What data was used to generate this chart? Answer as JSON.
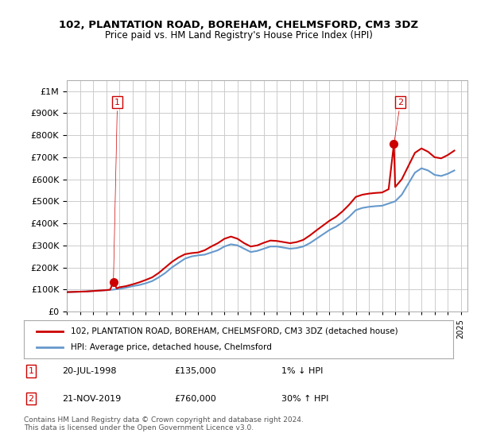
{
  "title": "102, PLANTATION ROAD, BOREHAM, CHELMSFORD, CM3 3DZ",
  "subtitle": "Price paid vs. HM Land Registry's House Price Index (HPI)",
  "property_label": "102, PLANTATION ROAD, BOREHAM, CHELMSFORD, CM3 3DZ (detached house)",
  "hpi_label": "HPI: Average price, detached house, Chelmsford",
  "annotation1_label": "1",
  "annotation1_date": "20-JUL-1998",
  "annotation1_price": "£135,000",
  "annotation1_hpi": "1% ↓ HPI",
  "annotation2_label": "2",
  "annotation2_date": "21-NOV-2019",
  "annotation2_price": "£760,000",
  "annotation2_hpi": "30% ↑ HPI",
  "footer": "Contains HM Land Registry data © Crown copyright and database right 2024.\nThis data is licensed under the Open Government Licence v3.0.",
  "property_color": "#cc0000",
  "hpi_color": "#6699cc",
  "background_color": "#ffffff",
  "grid_color": "#cccccc",
  "ylim": [
    0,
    1050000
  ],
  "xlim_start": 1995.0,
  "xlim_end": 2025.5,
  "sale1_x": 1998.55,
  "sale1_y": 135000,
  "sale2_x": 2019.9,
  "sale2_y": 760000,
  "hpi_years": [
    1995,
    1995.5,
    1996,
    1996.5,
    1997,
    1997.5,
    1998,
    1998.5,
    1999,
    1999.5,
    2000,
    2000.5,
    2001,
    2001.5,
    2002,
    2002.5,
    2003,
    2003.5,
    2004,
    2004.5,
    2005,
    2005.5,
    2006,
    2006.5,
    2007,
    2007.5,
    2008,
    2008.5,
    2009,
    2009.5,
    2010,
    2010.5,
    2011,
    2011.5,
    2012,
    2012.5,
    2013,
    2013.5,
    2014,
    2014.5,
    2015,
    2015.5,
    2016,
    2016.5,
    2017,
    2017.5,
    2018,
    2018.5,
    2019,
    2019.5,
    2020,
    2020.5,
    2021,
    2021.5,
    2022,
    2022.5,
    2023,
    2023.5,
    2024,
    2024.5
  ],
  "hpi_values": [
    88000,
    89000,
    90000,
    91000,
    93000,
    95000,
    97000,
    99000,
    103000,
    108000,
    115000,
    120000,
    128000,
    138000,
    155000,
    175000,
    200000,
    220000,
    240000,
    250000,
    255000,
    258000,
    268000,
    278000,
    295000,
    305000,
    300000,
    285000,
    270000,
    275000,
    285000,
    295000,
    295000,
    290000,
    285000,
    288000,
    295000,
    310000,
    330000,
    350000,
    370000,
    385000,
    405000,
    430000,
    460000,
    470000,
    475000,
    478000,
    480000,
    490000,
    500000,
    530000,
    580000,
    630000,
    650000,
    640000,
    620000,
    615000,
    625000,
    640000
  ],
  "prop_years": [
    1995,
    1995.5,
    1996,
    1996.5,
    1997,
    1997.5,
    1998,
    1998.3,
    1998.55,
    1998.8,
    1999,
    1999.5,
    2000,
    2000.5,
    2001,
    2001.5,
    2002,
    2002.5,
    2003,
    2003.5,
    2004,
    2004.5,
    2005,
    2005.5,
    2006,
    2006.5,
    2007,
    2007.5,
    2008,
    2008.5,
    2009,
    2009.5,
    2010,
    2010.5,
    2011,
    2011.5,
    2012,
    2012.5,
    2013,
    2013.5,
    2014,
    2014.5,
    2015,
    2015.5,
    2016,
    2016.5,
    2017,
    2017.5,
    2018,
    2018.5,
    2019,
    2019.5,
    2019.9,
    2020,
    2020.5,
    2021,
    2021.5,
    2022,
    2022.5,
    2023,
    2023.5,
    2024,
    2024.5
  ],
  "prop_values": [
    88000,
    89000,
    90000,
    91000,
    93000,
    95000,
    97000,
    99000,
    135000,
    105000,
    110000,
    115000,
    123000,
    132000,
    143000,
    155000,
    175000,
    200000,
    225000,
    245000,
    260000,
    265000,
    268000,
    278000,
    295000,
    310000,
    330000,
    340000,
    330000,
    310000,
    295000,
    300000,
    312000,
    322000,
    320000,
    315000,
    310000,
    315000,
    325000,
    345000,
    368000,
    390000,
    412000,
    430000,
    455000,
    485000,
    520000,
    530000,
    535000,
    538000,
    540000,
    555000,
    760000,
    565000,
    600000,
    660000,
    720000,
    740000,
    725000,
    700000,
    695000,
    710000,
    730000
  ]
}
